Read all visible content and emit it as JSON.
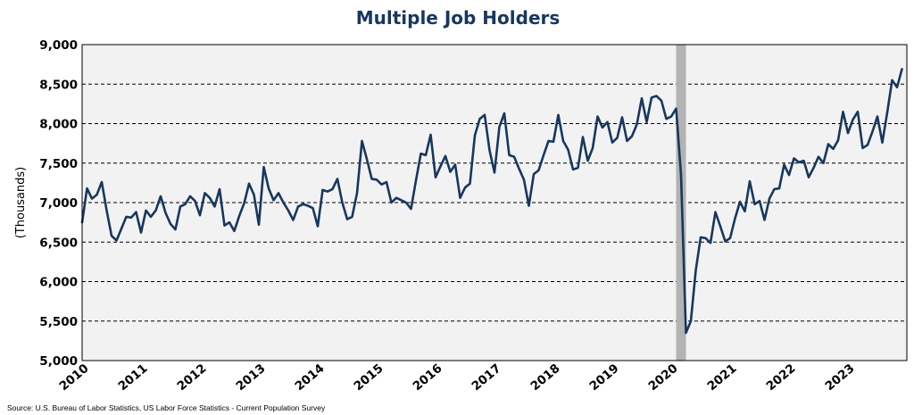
{
  "chart_data": {
    "type": "line",
    "title": "Multiple Job Holders",
    "ylabel": "(Thousands)",
    "xlabel": "",
    "source": "Source: U.S. Bureau of Labor Statistics, US Labor Force Statistics - Current Population Survey",
    "ylim": [
      5000,
      9000
    ],
    "xlim": [
      2010,
      2024
    ],
    "y_ticks": [
      "5,000",
      "5,500",
      "6,000",
      "6,500",
      "7,000",
      "7,500",
      "8,000",
      "8,500",
      "9,000"
    ],
    "y_tick_values": [
      5000,
      5500,
      6000,
      6500,
      7000,
      7500,
      8000,
      8500,
      9000
    ],
    "x_ticks": [
      "2010",
      "2011",
      "2012",
      "2013",
      "2014",
      "2015",
      "2016",
      "2017",
      "2018",
      "2019",
      "2020",
      "2021",
      "2022",
      "2023"
    ],
    "x_tick_values": [
      2010,
      2011,
      2012,
      2013,
      2014,
      2015,
      2016,
      2017,
      2018,
      2019,
      2020,
      2021,
      2022,
      2023
    ],
    "grid": "horizontal dashed",
    "recession_shading": {
      "from": "2020-02",
      "to": "2020-04",
      "color": "#b3b3b3"
    },
    "colors": {
      "line": "#17375e",
      "plot_background": "#f2f2f2",
      "title": "#17375e"
    },
    "series": [
      {
        "start": "2010-01",
        "frequency": "monthly",
        "values": [
          6750,
          7180,
          7050,
          7100,
          7260,
          6900,
          6580,
          6520,
          6670,
          6820,
          6810,
          6880,
          6620,
          6900,
          6820,
          6900,
          7080,
          6870,
          6730,
          6660,
          6950,
          6980,
          7080,
          7020,
          6840,
          7120,
          7060,
          6950,
          7170,
          6710,
          6750,
          6640,
          6830,
          6990,
          7240,
          7100,
          6720,
          7450,
          7180,
          7030,
          7120,
          7000,
          6900,
          6780,
          6950,
          6980,
          6960,
          6930,
          6700,
          7160,
          7140,
          7170,
          7300,
          7000,
          6790,
          6820,
          7120,
          7780,
          7550,
          7300,
          7290,
          7230,
          7260,
          7000,
          7060,
          7030,
          7000,
          6920,
          7280,
          7620,
          7600,
          7860,
          7320,
          7460,
          7590,
          7390,
          7480,
          7060,
          7190,
          7240,
          7850,
          8060,
          8110,
          7660,
          7380,
          7960,
          8130,
          7600,
          7580,
          7430,
          7290,
          6960,
          7360,
          7410,
          7600,
          7780,
          7770,
          8110,
          7780,
          7670,
          7420,
          7440,
          7830,
          7530,
          7690,
          8090,
          7950,
          8020,
          7760,
          7820,
          8080,
          7780,
          7840,
          7990,
          8320,
          8020,
          8330,
          8350,
          8290,
          8060,
          8090,
          8190,
          7350,
          5350,
          5500,
          6140,
          6560,
          6550,
          6490,
          6880,
          6700,
          6510,
          6550,
          6800,
          7010,
          6890,
          7270,
          6980,
          7020,
          6780,
          7050,
          7170,
          7180,
          7480,
          7350,
          7560,
          7510,
          7530,
          7320,
          7440,
          7580,
          7500,
          7740,
          7680,
          7790,
          8150,
          7880,
          8050,
          8150,
          7690,
          7730,
          7900,
          8090,
          7760,
          8140,
          8550,
          8460,
          8690
        ]
      }
    ]
  }
}
